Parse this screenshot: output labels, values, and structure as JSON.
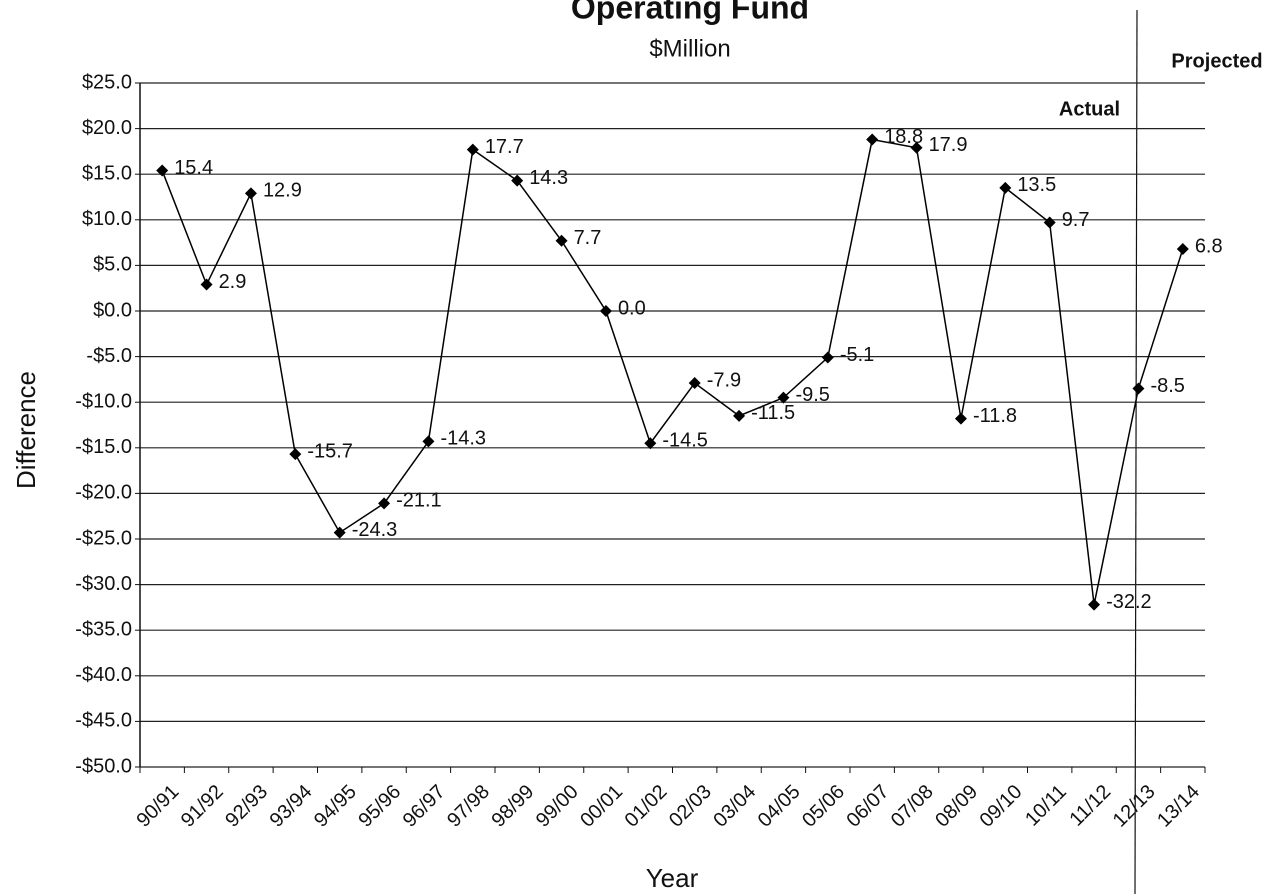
{
  "chart_data": {
    "type": "line",
    "title": "Operating Fund",
    "subtitle": "$Million",
    "y_label": "Difference",
    "x_label": "Year",
    "annotations": [
      "Actual",
      "Projected"
    ],
    "categories": [
      "90/91",
      "91/92",
      "92/93",
      "93/94",
      "94/95",
      "95/96",
      "96/97",
      "97/98",
      "98/99",
      "99/00",
      "00/01",
      "01/02",
      "02/03",
      "03/04",
      "04/05",
      "05/06",
      "06/07",
      "07/08",
      "08/09",
      "09/10",
      "10/11",
      "11/12",
      "12/13",
      "13/14"
    ],
    "values": [
      15.4,
      2.9,
      12.9,
      -15.7,
      -24.3,
      -21.1,
      -14.3,
      17.7,
      14.3,
      7.7,
      0.0,
      -14.5,
      -7.9,
      -11.5,
      -9.5,
      -5.1,
      18.8,
      17.9,
      -11.8,
      13.5,
      9.7,
      -32.2,
      -8.5,
      6.8
    ],
    "value_labels": [
      "15.4",
      "2.9",
      "12.9",
      "-15.7",
      "-24.3",
      "-21.1",
      "-14.3",
      "17.7",
      "14.3",
      "7.7",
      "0.0",
      "-14.5",
      "-7.9",
      "-11.5",
      "-9.5",
      "-5.1",
      "18.8",
      "17.9",
      "-11.8",
      "13.5",
      "9.7",
      "-32.2",
      "-8.5",
      "6.8"
    ],
    "color": "#000000",
    "ylim": [
      -50,
      25
    ],
    "yticks": [
      {
        "value": 25,
        "label": "$25.0"
      },
      {
        "value": 20,
        "label": "$20.0"
      },
      {
        "value": 15,
        "label": "$15.0"
      },
      {
        "value": 10,
        "label": "$10.0"
      },
      {
        "value": 5,
        "label": "$5.0"
      },
      {
        "value": 0,
        "label": "$0.0"
      },
      {
        "value": -5,
        "label": "-$5.0"
      },
      {
        "value": -10,
        "label": "-$10.0"
      },
      {
        "value": -15,
        "label": "-$15.0"
      },
      {
        "value": -20,
        "label": "-$20.0"
      },
      {
        "value": -25,
        "label": "-$25.0"
      },
      {
        "value": -30,
        "label": "-$30.0"
      },
      {
        "value": -35,
        "label": "-$35.0"
      },
      {
        "value": -40,
        "label": "-$40.0"
      },
      {
        "value": -45,
        "label": "-$45.0"
      },
      {
        "value": -50,
        "label": "-$50.0"
      }
    ],
    "grid": true
  }
}
